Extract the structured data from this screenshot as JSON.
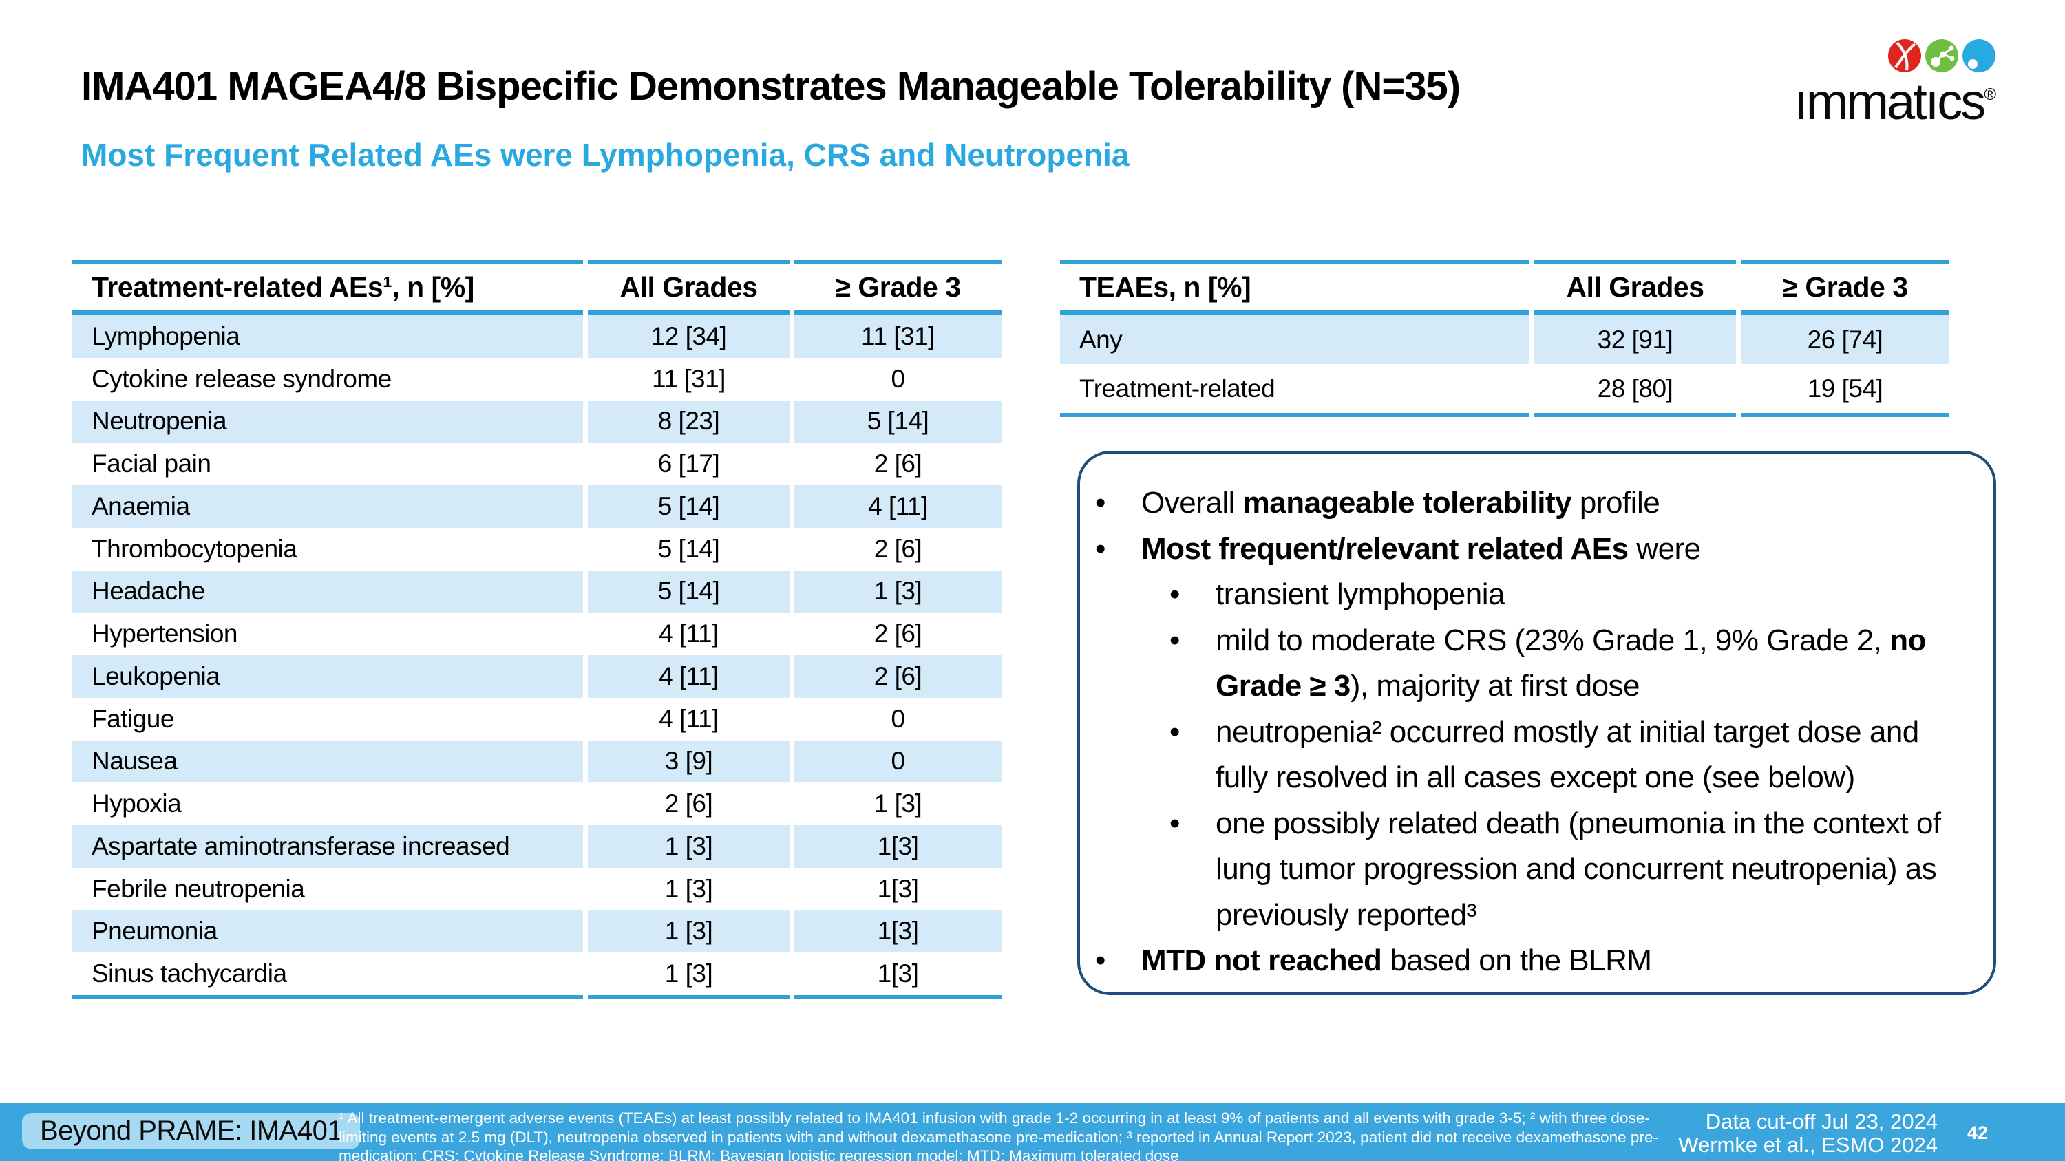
{
  "header": {
    "title": "IMA401 MAGEA4/8 Bispecific Demonstrates Manageable Tolerability (N=35)",
    "subtitle": "Most Frequent Related AEs were Lymphopenia, CRS and Neutropenia",
    "logo": {
      "word": "ımmatıcs",
      "reg": "®"
    }
  },
  "left_table": {
    "header": [
      "Treatment-related AEs¹, n [%]",
      "All Grades",
      "≥ Grade 3"
    ],
    "rows": [
      [
        "Lymphopenia",
        "12 [34]",
        "11 [31]"
      ],
      [
        "Cytokine release syndrome",
        "11 [31]",
        "0"
      ],
      [
        "Neutropenia",
        "8 [23]",
        "5 [14]"
      ],
      [
        "Facial pain",
        "6 [17]",
        "2 [6]"
      ],
      [
        "Anaemia",
        "5 [14]",
        "4 [11]"
      ],
      [
        "Thrombocytopenia",
        "5 [14]",
        "2 [6]"
      ],
      [
        "Headache",
        "5 [14]",
        "1 [3]"
      ],
      [
        "Hypertension",
        "4 [11]",
        "2 [6]"
      ],
      [
        "Leukopenia",
        "4 [11]",
        "2 [6]"
      ],
      [
        "Fatigue",
        "4 [11]",
        "0"
      ],
      [
        "Nausea",
        "3 [9]",
        "0"
      ],
      [
        "Hypoxia",
        "2 [6]",
        "1 [3]"
      ],
      [
        "Aspartate aminotransferase increased",
        "1 [3]",
        "1[3]"
      ],
      [
        "Febrile neutropenia",
        "1 [3]",
        "1[3]"
      ],
      [
        "Pneumonia",
        "1 [3]",
        "1[3]"
      ],
      [
        "Sinus tachycardia",
        "1 [3]",
        "1[3]"
      ]
    ]
  },
  "right_table": {
    "header": [
      "TEAEs, n [%]",
      "All Grades",
      "≥ Grade 3"
    ],
    "rows": [
      [
        "Any",
        "32 [91]",
        "26 [74]"
      ],
      [
        "Treatment-related",
        "28 [80]",
        "19 [54]"
      ]
    ]
  },
  "summary": {
    "bullets": [
      {
        "level": 1,
        "segs": [
          [
            "Overall ",
            0
          ],
          [
            "manageable tolerability",
            1
          ],
          [
            " profile",
            0
          ]
        ]
      },
      {
        "level": 1,
        "segs": [
          [
            "Most frequent/relevant related AEs",
            1
          ],
          [
            " were",
            0
          ]
        ]
      },
      {
        "level": 2,
        "segs": [
          [
            "transient lymphopenia",
            0
          ]
        ]
      },
      {
        "level": 2,
        "segs": [
          [
            "mild to moderate CRS (23% Grade 1, 9% Grade 2, ",
            0
          ],
          [
            "no Grade ≥ 3",
            1
          ],
          [
            "), majority at first dose",
            0
          ]
        ]
      },
      {
        "level": 2,
        "segs": [
          [
            "neutropenia² occurred mostly at initial target dose and fully resolved in all cases except one (see below)",
            0
          ]
        ]
      },
      {
        "level": 2,
        "segs": [
          [
            "one possibly related death (pneumonia in the context of lung tumor progression and concurrent neutropenia) as previously reported³",
            0
          ]
        ]
      },
      {
        "level": 1,
        "segs": [
          [
            "MTD not reached",
            1
          ],
          [
            " based on the BLRM",
            0
          ]
        ]
      }
    ]
  },
  "footer": {
    "tag": "Beyond PRAME: IMA401",
    "footnote_lines": [
      "¹ All treatment-emergent adverse events (TEAEs) at least possibly related to IMA401 infusion with grade 1-2 occurring in at least 9% of patients and all events with grade 3-5; ² with three dose-",
      "limiting events at 2.5 mg (DLT), neutropenia observed in patients with and without dexamethasone pre-medication; ³ reported in Annual Report 2023, patient did not receive dexamethasone pre-",
      "medication; CRS: Cytokine Release Syndrome; BLRM: Bayesian logistic regression model; MTD: Maximum tolerated dose"
    ],
    "data_cutoff": "Data cut-off Jul 23, 2024",
    "reference": "Wermke et al., ESMO 2024",
    "page_number": "42"
  },
  "colors": {
    "accent_blue": "#2FA0D8",
    "row_stripe": "#D4EAF8",
    "subtitle_blue": "#2AA9E0",
    "footer_blue": "#3BA6DE",
    "chip_blue": "#A7D9F2",
    "box_border_navy": "#1F4E79",
    "logo_red": "#E0251F",
    "logo_green": "#6FBE44",
    "logo_blue": "#29A9E1"
  }
}
